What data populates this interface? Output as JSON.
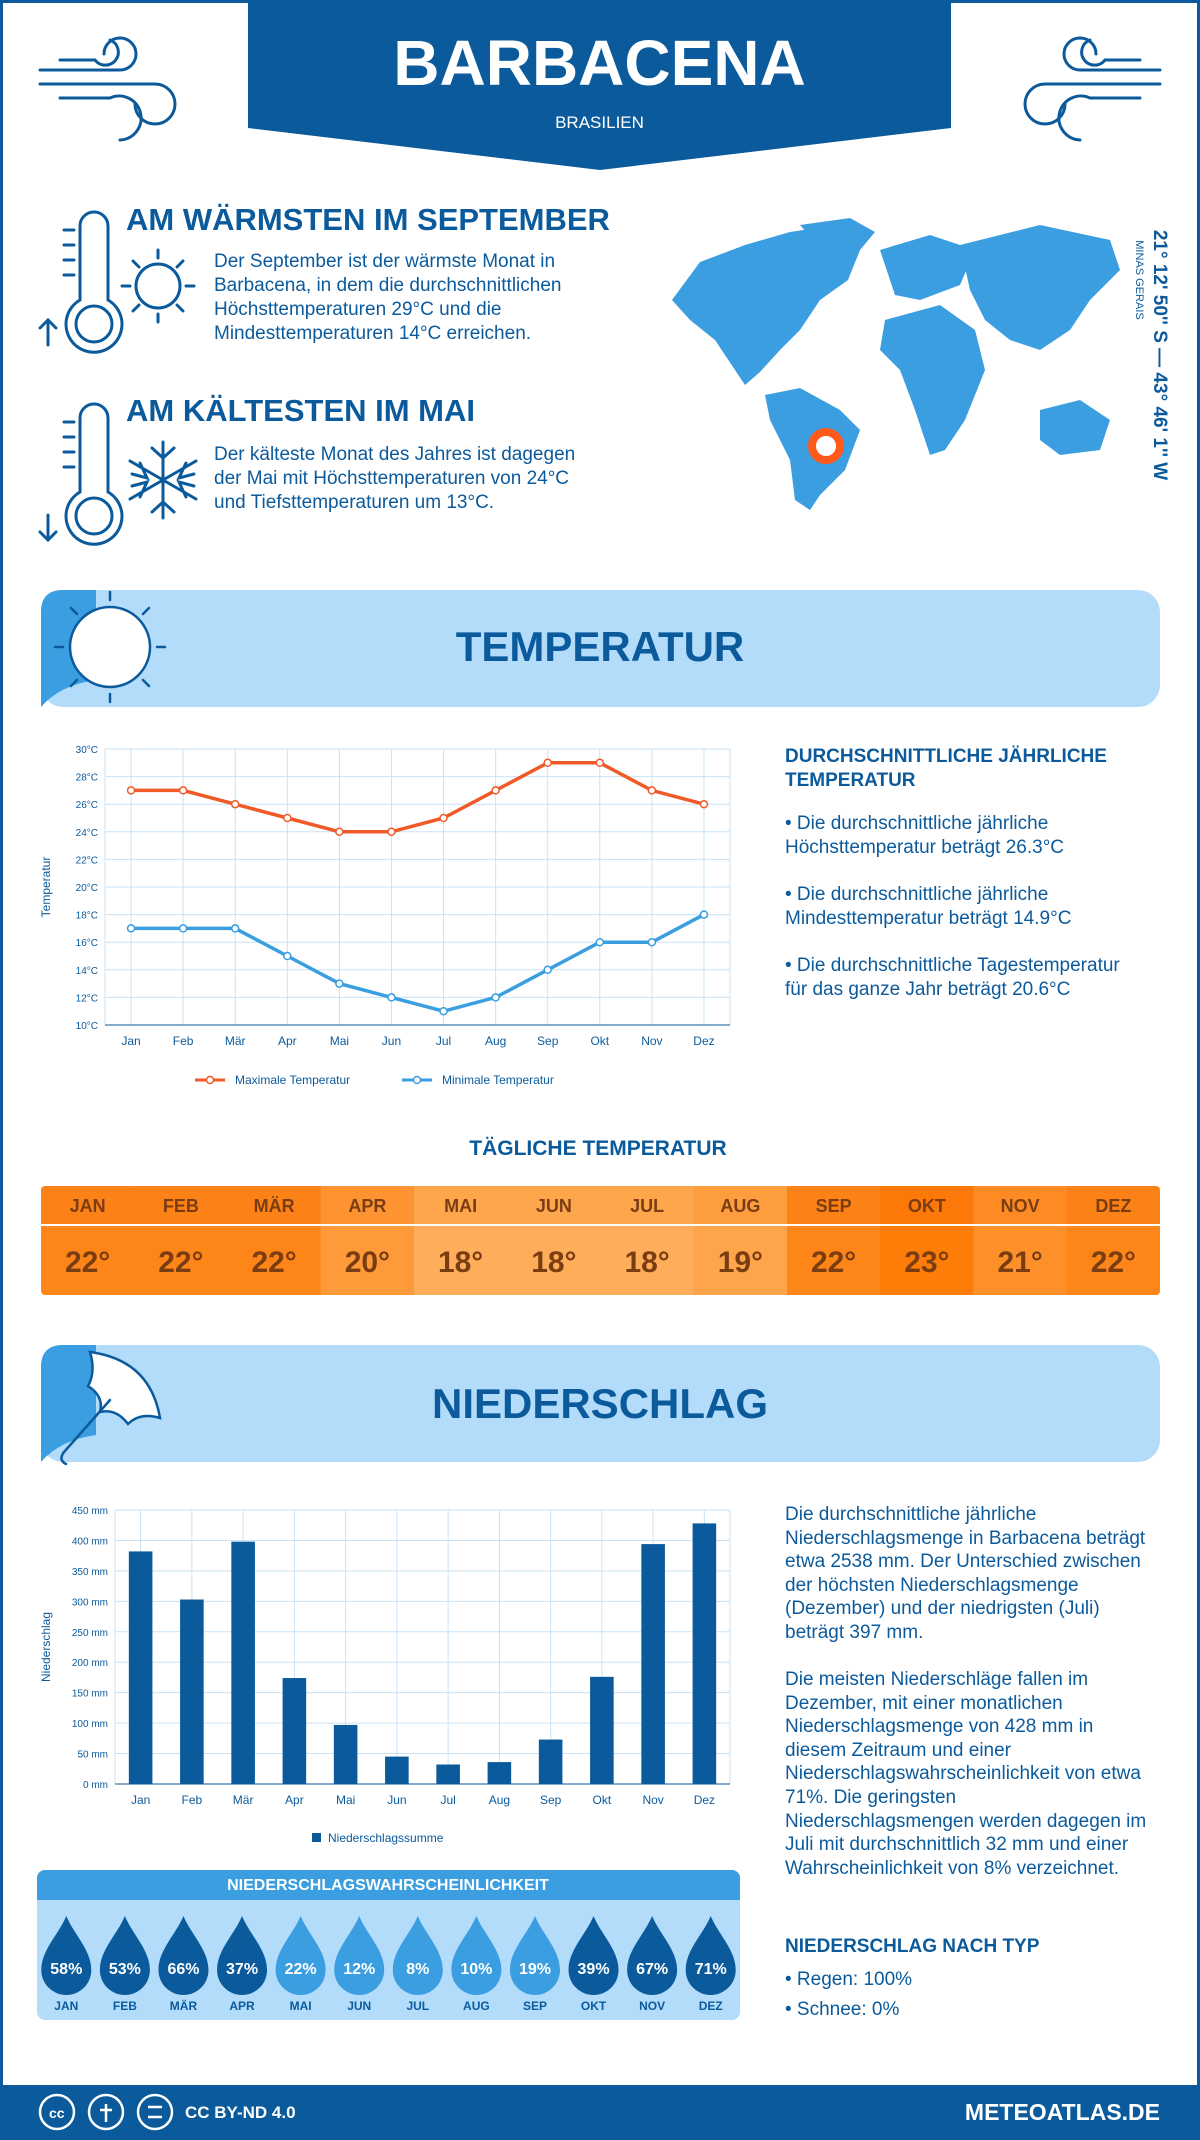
{
  "header": {
    "title": "BARBACENA",
    "subtitle": "BRASILIEN"
  },
  "highlights": [
    {
      "title": "AM WÄRMSTEN IM SEPTEMBER",
      "text": "Der September ist der wärmste Monat in Barbacena, in dem die durchschnittlichen Höchsttemperaturen 29°C und die Mindesttemperaturen 14°C erreichen."
    },
    {
      "title": "AM KÄLTESTEN IM MAI",
      "text": "Der kälteste Monat des Jahres ist dagegen der Mai mit Höchsttemperaturen von 24°C und Tiefsttemperaturen um 13°C."
    }
  ],
  "location": {
    "coordinates": "21° 12' 50'' S — 43° 46' 1'' W",
    "region": "MINAS GERAIS"
  },
  "temperature": {
    "title": "TEMPERATUR",
    "summary_title": "DURCHSCHNITTLICHE JÄHRLICHE TEMPERATUR",
    "summary": [
      "• Die durchschnittliche jährliche Höchsttemperatur beträgt 26.3°C",
      "• Die durchschnittliche jährliche Mindesttemperatur beträgt 14.9°C",
      "• Die durchschnittliche Tagestemperatur für das ganze Jahr beträgt 20.6°C"
    ],
    "daily_title": "TÄGLICHE TEMPERATUR",
    "daily": {
      "months": [
        "JAN",
        "FEB",
        "MÄR",
        "APR",
        "MAI",
        "JUN",
        "JUL",
        "AUG",
        "SEP",
        "OKT",
        "NOV",
        "DEZ"
      ],
      "values": [
        22,
        22,
        22,
        20,
        18,
        18,
        18,
        19,
        22,
        23,
        21,
        22
      ],
      "value_labels": [
        "22°",
        "22°",
        "22°",
        "20°",
        "18°",
        "18°",
        "18°",
        "19°",
        "22°",
        "23°",
        "21°",
        "22°"
      ]
    }
  },
  "precipitation": {
    "title": "NIEDERSCHLAG",
    "paragraphs": [
      "Die durchschnittliche jährliche Niederschlagsmenge in Barbacena beträgt etwa 2538 mm. Der Unterschied zwischen der höchsten Niederschlagsmenge (Dezember) und der niedrigsten (Juli) beträgt 397 mm.",
      "Die meisten Niederschläge fallen im Dezember, mit einer monatlichen Niederschlagsmenge von 428 mm in diesem Zeitraum und einer Niederschlagswahrscheinlichkeit von etwa 71%. Die geringsten Niederschlagsmengen werden dagegen im Juli mit durchschnittlich 32 mm und einer Wahrscheinlichkeit von 8% verzeichnet."
    ],
    "type_title": "NIEDERSCHLAG NACH TYP",
    "types": [
      "• Regen: 100%",
      "• Schnee: 0%"
    ],
    "probability": {
      "title": "NIEDERSCHLAGSWAHRSCHEINLICHKEIT",
      "months": [
        "JAN",
        "FEB",
        "MÄR",
        "APR",
        "MAI",
        "JUN",
        "JUL",
        "AUG",
        "SEP",
        "OKT",
        "NOV",
        "DEZ"
      ],
      "values": [
        58,
        53,
        66,
        37,
        22,
        12,
        8,
        10,
        19,
        39,
        67,
        71
      ],
      "value_labels": [
        "58%",
        "53%",
        "66%",
        "37%",
        "22%",
        "12%",
        "8%",
        "10%",
        "19%",
        "39%",
        "67%",
        "71%"
      ]
    }
  },
  "footer": {
    "license": "CC BY-ND 4.0",
    "site": "METEOATLAS.DE"
  },
  "chart_data": [
    {
      "type": "line",
      "y_label": "Temperatur",
      "categories": [
        "Jan",
        "Feb",
        "Mär",
        "Apr",
        "Mai",
        "Jun",
        "Jul",
        "Aug",
        "Sep",
        "Okt",
        "Nov",
        "Dez"
      ],
      "series": [
        {
          "name": "Maximale Temperatur",
          "color": "#f05a28",
          "values": [
            27,
            27,
            26,
            25,
            24,
            24,
            25,
            27,
            29,
            29,
            27,
            26
          ]
        },
        {
          "name": "Minimale Temperatur",
          "color": "#3a9ee0",
          "values": [
            17,
            17,
            17,
            15,
            13,
            12,
            11,
            12,
            14,
            16,
            16,
            18
          ]
        }
      ],
      "ylim": [
        10,
        30
      ],
      "yticks": [
        {
          "value": 10,
          "label": "10°C"
        },
        {
          "value": 12,
          "label": "12°C"
        },
        {
          "value": 14,
          "label": "14°C"
        },
        {
          "value": 16,
          "label": "16°C"
        },
        {
          "value": 18,
          "label": "18°C"
        },
        {
          "value": 20,
          "label": "20°C"
        },
        {
          "value": 22,
          "label": "22°C"
        },
        {
          "value": 24,
          "label": "24°C"
        },
        {
          "value": 26,
          "label": "26°C"
        },
        {
          "value": 28,
          "label": "28°C"
        },
        {
          "value": 30,
          "label": "30°C"
        }
      ],
      "grid": true
    },
    {
      "type": "bar",
      "y_label": "Niederschlag",
      "categories": [
        "Jan",
        "Feb",
        "Mär",
        "Apr",
        "Mai",
        "Jun",
        "Jul",
        "Aug",
        "Sep",
        "Okt",
        "Nov",
        "Dez"
      ],
      "series": [
        {
          "name": "Niederschlagssumme",
          "color": "#0b5a9c",
          "values": [
            382,
            303,
            398,
            174,
            97,
            45,
            32,
            36,
            73,
            176,
            394,
            428
          ]
        }
      ],
      "ylim": [
        0,
        450
      ],
      "yticks": [
        {
          "value": 0,
          "label": "0 mm"
        },
        {
          "value": 50,
          "label": "50 mm"
        },
        {
          "value": 100,
          "label": "100 mm"
        },
        {
          "value": 150,
          "label": "150 mm"
        },
        {
          "value": 200,
          "label": "200 mm"
        },
        {
          "value": 250,
          "label": "250 mm"
        },
        {
          "value": 300,
          "label": "300 mm"
        },
        {
          "value": 350,
          "label": "350 mm"
        },
        {
          "value": 400,
          "label": "400 mm"
        },
        {
          "value": 450,
          "label": "450 mm"
        }
      ],
      "grid": true
    }
  ]
}
